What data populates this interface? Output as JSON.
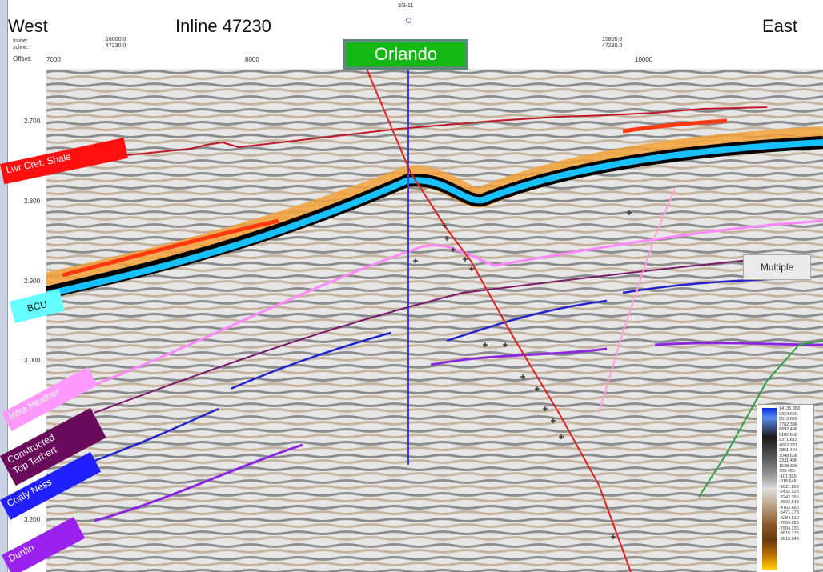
{
  "header": {
    "west": "West",
    "east": "East",
    "inline_title": "Inline 47230",
    "top_label": "3/3-11",
    "row_labels": "Inline:\nxcline:",
    "offset_label": "Offset:",
    "ticks_top": [
      {
        "text": "16000.0\n47230.0"
      },
      {
        "text": "15800.0\n47230.0"
      }
    ],
    "offset_ticks": [
      "7000",
      "8000",
      "10000"
    ]
  },
  "well": {
    "name": "Orlando"
  },
  "y_axis": {
    "labels": [
      "2.700",
      "2.800",
      "2.900",
      "3.000",
      "3.200"
    ]
  },
  "horizons": [
    {
      "label": "Lwr Cret. Shale",
      "bg": "#ff1010",
      "fg": "#ffffff"
    },
    {
      "label": "BCU",
      "bg": "#66ffff",
      "fg": "#111111"
    },
    {
      "label": "Intra Heather",
      "bg": "#ff99ff",
      "fg": "#ffffff"
    },
    {
      "label": "Constructed\nTop Tarbert",
      "bg": "#6a0a5a",
      "fg": "#ffffff"
    },
    {
      "label": "Coaly Ness",
      "bg": "#2020ff",
      "fg": "#ffffff"
    },
    {
      "label": "Dunlin",
      "bg": "#9922ee",
      "fg": "#ffffff"
    }
  ],
  "annotations": {
    "multiple": "Multiple"
  },
  "colorbar": {
    "values": "14135.358\n9324.660\n8513.026\n7702.388\n6892.496\n6102.658\n5371.815\n4662.331\n3851.494\n3048.658\n2331.496\n1528.326\n709.485\n-101.359\n-918.645\n-1621.608\n-2432.526\n-3243.356\n-3992.645\n-4763.665\n-5471.178\n-6284.510\n-7064.859\n-7904.235\n-8615.175\n-9519.549"
  },
  "colors": {
    "peak": "#1030ff",
    "trough": "#ff8000",
    "fault": "#e02020",
    "well_path": "#3a3aff"
  }
}
